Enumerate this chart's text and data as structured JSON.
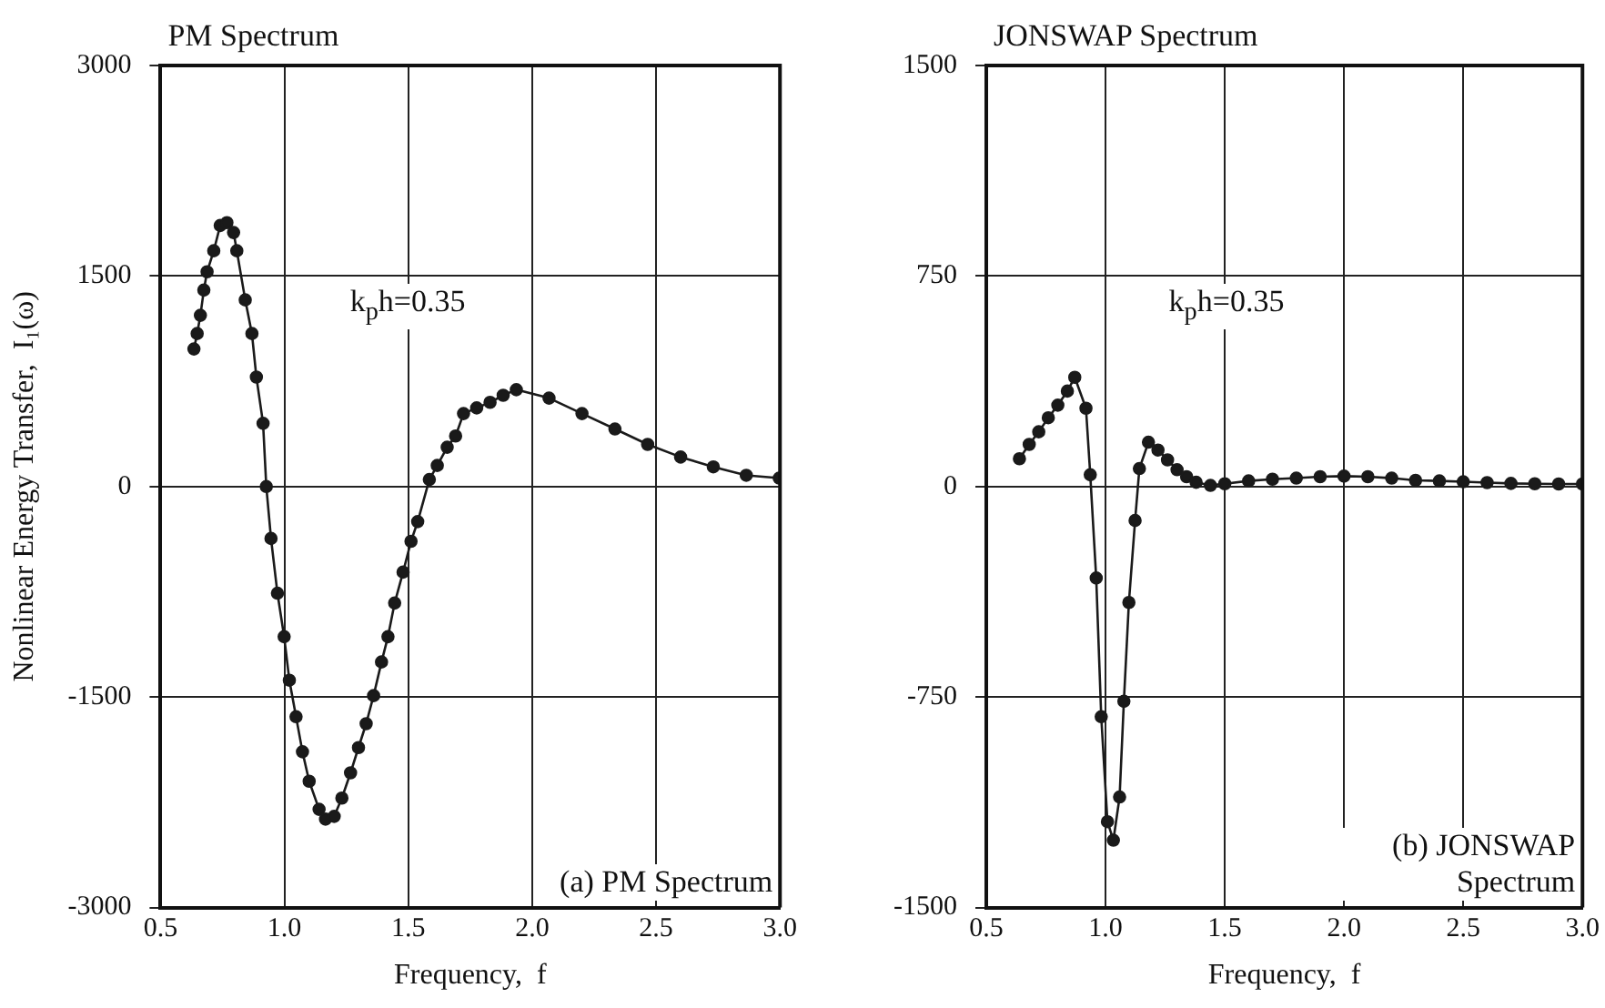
{
  "chart_data": [
    {
      "type": "line",
      "title": "PM Spectrum",
      "xlabel": "Frequency,  f",
      "ylabel": "Nonlinear Energy Transfer,  I₁(ω)",
      "annotations": [
        "k$_{p}$h=0.35",
        "(a) PM Spectrum"
      ],
      "series": [
        {
          "color": "#1a1a1a",
          "x": [
            0.635,
            0.648,
            0.661,
            0.675,
            0.688,
            0.715,
            0.741,
            0.768,
            0.795,
            0.808,
            0.842,
            0.869,
            0.887,
            0.914,
            0.927,
            0.946,
            0.972,
            0.999,
            1.02,
            1.047,
            1.073,
            1.1,
            1.14,
            1.166,
            1.201,
            1.232,
            1.267,
            1.299,
            1.33,
            1.36,
            1.392,
            1.418,
            1.445,
            1.479,
            1.511,
            1.538,
            1.585,
            1.617,
            1.657,
            1.691,
            1.723,
            1.776,
            1.83,
            1.883,
            1.936,
            2.068,
            2.201,
            2.334,
            2.466,
            2.599,
            2.731,
            2.864,
            2.997
          ],
          "values": [
            980,
            1090,
            1220,
            1400,
            1530,
            1680,
            1860,
            1880,
            1810,
            1680,
            1330,
            1090,
            780,
            450,
            0,
            -370,
            -760,
            -1070,
            -1380,
            -1640,
            -1890,
            -2100,
            -2300,
            -2370,
            -2350,
            -2220,
            -2040,
            -1860,
            -1690,
            -1490,
            -1250,
            -1070,
            -830,
            -610,
            -390,
            -250,
            50,
            150,
            280,
            360,
            520,
            560,
            600,
            650,
            690,
            630,
            520,
            410,
            300,
            210,
            140,
            80,
            60
          ]
        }
      ],
      "xlim": [
        0.5,
        3.0
      ],
      "xticks": [
        {
          "value": 0.5,
          "label": "0.5"
        },
        {
          "value": 1,
          "label": "1.0"
        },
        {
          "value": 1.5,
          "label": "1.5"
        },
        {
          "value": 2,
          "label": "2.0"
        },
        {
          "value": 2.5,
          "label": "2.5"
        },
        {
          "value": 3,
          "label": "3.0"
        }
      ],
      "ylim": [
        -3000,
        3000
      ],
      "yticks": [
        -3000,
        -1500,
        0,
        1500,
        3000
      ],
      "grid": true,
      "marker": "circle",
      "line_style": "solid"
    },
    {
      "type": "line",
      "title": "JONSWAP Spectrum",
      "xlabel": "Frequency,  f",
      "annotations": [
        "k$_{p}$h=0.35",
        "(b) JONSWAP Spectrum"
      ],
      "series": [
        {
          "color": "#1a1a1a",
          "x": [
            0.639,
            0.68,
            0.72,
            0.76,
            0.8,
            0.84,
            0.871,
            0.918,
            0.936,
            0.961,
            0.982,
            1.008,
            1.033,
            1.059,
            1.077,
            1.098,
            1.124,
            1.142,
            1.18,
            1.22,
            1.26,
            1.3,
            1.34,
            1.38,
            1.44,
            1.5,
            1.6,
            1.7,
            1.8,
            1.9,
            2.0,
            2.1,
            2.2,
            2.3,
            2.4,
            2.5,
            2.6,
            2.7,
            2.8,
            2.9,
            3.0
          ],
          "values": [
            99,
            150,
            195,
            245,
            290,
            340,
            389,
            279,
            42,
            -326,
            -820,
            -1194,
            -1260,
            -1106,
            -765,
            -413,
            -121,
            64,
            158,
            130,
            95,
            60,
            35,
            15,
            4,
            10,
            20,
            26,
            30,
            35,
            37,
            35,
            30,
            22,
            20,
            17,
            14,
            11,
            10,
            9,
            9
          ]
        }
      ],
      "xlim": [
        0.5,
        3.0
      ],
      "xticks": [
        {
          "value": 0.5,
          "label": "0.5"
        },
        {
          "value": 1,
          "label": "1.0"
        },
        {
          "value": 1.5,
          "label": "1.5"
        },
        {
          "value": 2,
          "label": "2.0"
        },
        {
          "value": 2.5,
          "label": "2.5"
        },
        {
          "value": 3,
          "label": "3.0"
        }
      ],
      "ylim": [
        -1500,
        1500
      ],
      "yticks": [
        -1500,
        -750,
        0,
        750,
        1500
      ],
      "grid": true,
      "marker": "circle",
      "line_style": "solid"
    }
  ]
}
